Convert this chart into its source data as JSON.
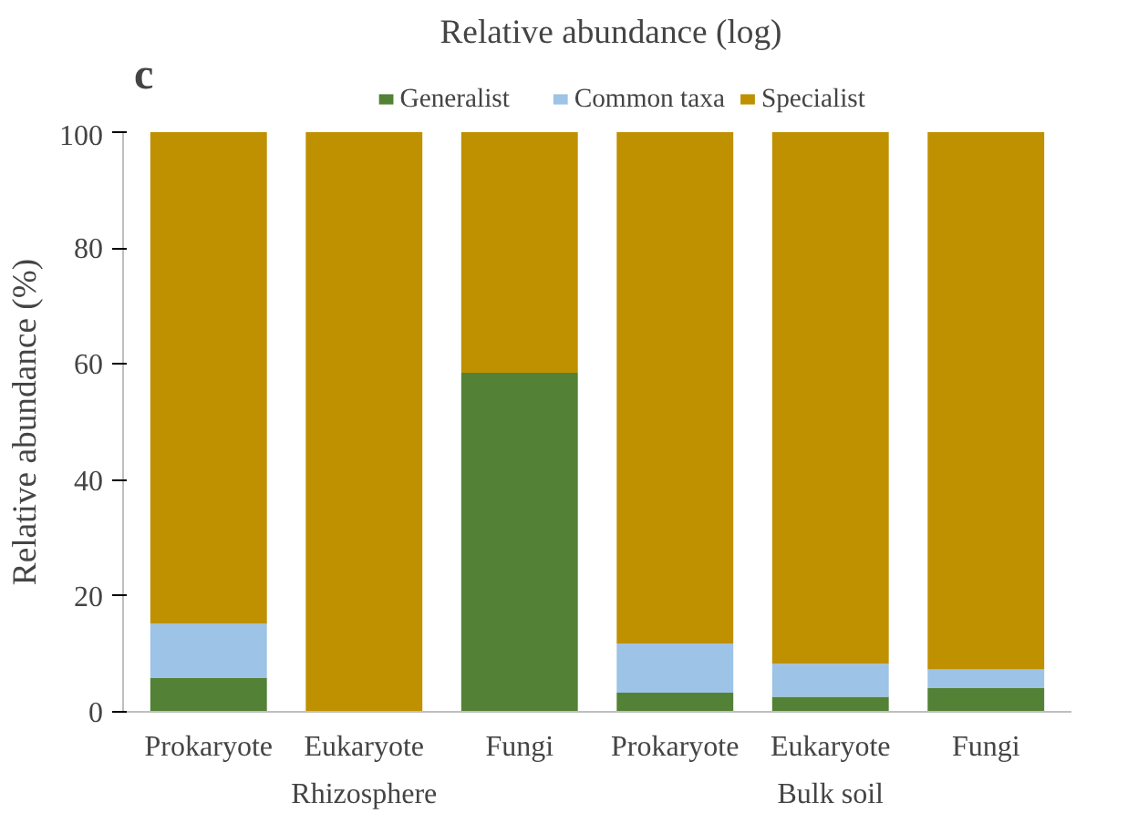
{
  "chart_data": {
    "type": "bar",
    "title": "Relative abundance (log)",
    "ylabel": "Relative abundance (%)",
    "stacked": true,
    "categories": [
      "Prokaryote",
      "Eukaryote",
      "Fungi",
      "Prokaryote",
      "Eukaryote",
      "Fungi"
    ],
    "annotations": [
      "c",
      "Rhizosphere",
      "Bulk soil"
    ],
    "series": [
      {
        "name": "Generalist",
        "color": "#538135",
        "values": [
          5.8,
          0,
          58.5,
          3.3,
          2.6,
          4.1
        ]
      },
      {
        "name": "Common taxa",
        "color": "#9dc3e6",
        "values": [
          9.4,
          0,
          0,
          8.5,
          5.7,
          3.2
        ]
      },
      {
        "name": "Specialist",
        "color": "#bf9000",
        "values": [
          84.8,
          100,
          41.5,
          88.2,
          91.7,
          92.7
        ]
      }
    ],
    "ylim": [
      0,
      100
    ],
    "yticks": [
      0,
      20,
      40,
      60,
      80,
      100
    ],
    "grid": false,
    "legend": "top"
  }
}
